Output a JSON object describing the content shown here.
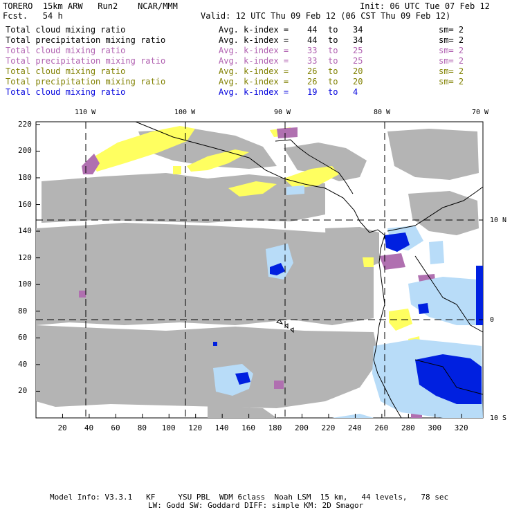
{
  "header": {
    "model": "TORERO  15km ARW   Run2    NCAR/MMM",
    "init": "Init: 06 UTC Tue 07 Feb 12",
    "fcst": "Fcst.   54 h",
    "valid": "Valid: 12 UTC Thu 09 Feb 12 (06 CST Thu 09 Feb 12)"
  },
  "legend": [
    {
      "field": "Total cloud mixing ratio",
      "kindex": "Avg. k-index = ",
      "from": "44",
      "to_word": "to",
      "to": "34",
      "sm": "sm= 2",
      "color": "#000000"
    },
    {
      "field": "Total precipitation mixing ratio",
      "kindex": "Avg. k-index = ",
      "from": "44",
      "to_word": "to",
      "to": "34",
      "sm": "sm= 2",
      "color": "#000000"
    },
    {
      "field": "Total cloud mixing ratio",
      "kindex": "Avg. k-index = ",
      "from": "33",
      "to_word": "to",
      "to": "25",
      "sm": "sm= 2",
      "color": "#b060b0"
    },
    {
      "field": "Total precipitation mixing ratio",
      "kindex": "Avg. k-index = ",
      "from": "33",
      "to_word": "to",
      "to": "25",
      "sm": "sm= 2",
      "color": "#b060b0"
    },
    {
      "field": "Total cloud mixing ratio",
      "kindex": "Avg. k-index = ",
      "from": "26",
      "to_word": "to",
      "to": "20",
      "sm": "sm= 2",
      "color": "#808000"
    },
    {
      "field": "Total precipitation mixing ratio",
      "kindex": "Avg. k-index = ",
      "from": "26",
      "to_word": "to",
      "to": "20",
      "sm": "sm= 2",
      "color": "#808000"
    },
    {
      "field": "Total cloud mixing ratio",
      "kindex": "Avg. k-index = ",
      "from": "19",
      "to_word": "to",
      "to": "4",
      "sm": "",
      "color": "#0000dd"
    }
  ],
  "axes": {
    "top_lon": [
      "110 W",
      "100 W",
      "90 W",
      "80 W",
      "70 W"
    ],
    "right_lat": [
      "10 N",
      "0",
      "10 S"
    ],
    "x_ticks": [
      "20",
      "40",
      "60",
      "80",
      "100",
      "120",
      "140",
      "160",
      "180",
      "200",
      "220",
      "240",
      "260",
      "280",
      "300",
      "320"
    ],
    "y_ticks": [
      "220",
      "200",
      "180",
      "160",
      "140",
      "120",
      "100",
      "80",
      "60",
      "40",
      "20"
    ]
  },
  "footer": {
    "line1": "Model Info: V3.3.1   KF     YSU PBL  WDM 6class  Noah LSM  15 km,   44 levels,   78 sec",
    "line2": "LW: Godd SW: Goddard DIFF: simple KM: 2D Smagor"
  },
  "colors": {
    "gray_cloud": "#b4b4b4",
    "purple": "#b070b0",
    "yellow": "#ffff60",
    "light_blue": "#b8dcf8",
    "blue": "#0020e0"
  }
}
